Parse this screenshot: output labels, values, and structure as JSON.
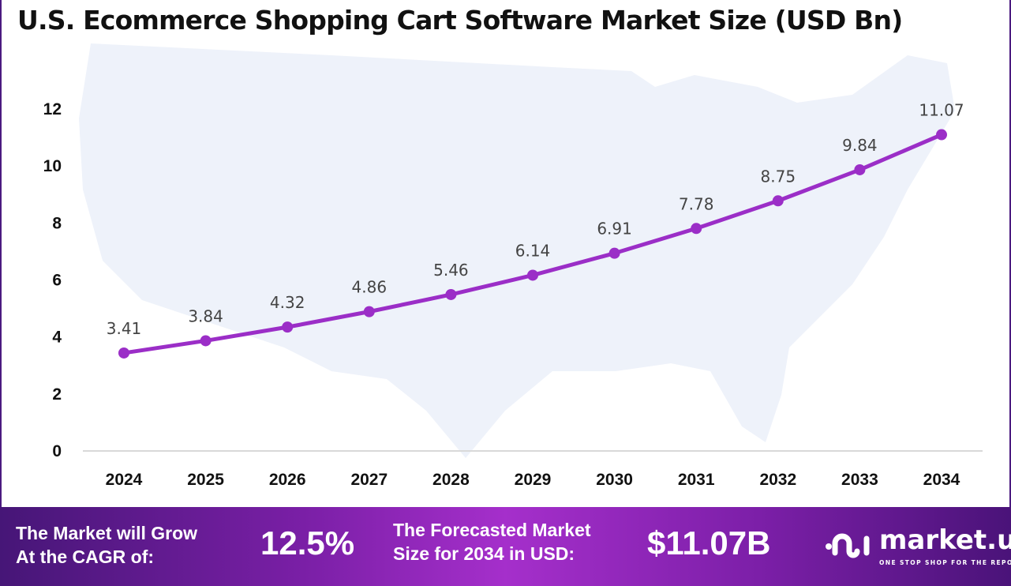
{
  "title": "U.S. Ecommerce Shopping Cart Software Market Size (USD Bn)",
  "chart_data": {
    "type": "line",
    "title": "U.S. Ecommerce Shopping Cart Software Market Size (USD Bn)",
    "categories": [
      "2024",
      "2025",
      "2026",
      "2027",
      "2028",
      "2029",
      "2030",
      "2031",
      "2032",
      "2033",
      "2034"
    ],
    "values": [
      3.41,
      3.84,
      4.32,
      4.86,
      5.46,
      6.14,
      6.91,
      7.78,
      8.75,
      9.84,
      11.07
    ],
    "data_labels": [
      "3.41",
      "3.84",
      "4.32",
      "4.86",
      "5.46",
      "6.14",
      "6.91",
      "7.78",
      "8.75",
      "9.84",
      "11.07"
    ],
    "yticks": [
      "0",
      "2",
      "4",
      "6",
      "8",
      "10",
      "12"
    ],
    "ylim": [
      0,
      12
    ],
    "grid": false,
    "line_color": "#9b2ec7",
    "background": "US map silhouette"
  },
  "footer": {
    "cagr_label_1": "The Market will Grow",
    "cagr_label_2": "At the CAGR of:",
    "cagr_value": "12.5%",
    "forecast_label_1": "The Forecasted Market",
    "forecast_label_2": "Size for 2034 in USD:",
    "forecast_value": "$11.07B",
    "logo_name": "market.us",
    "logo_tagline": "ONE STOP SHOP FOR THE REPORTS"
  }
}
